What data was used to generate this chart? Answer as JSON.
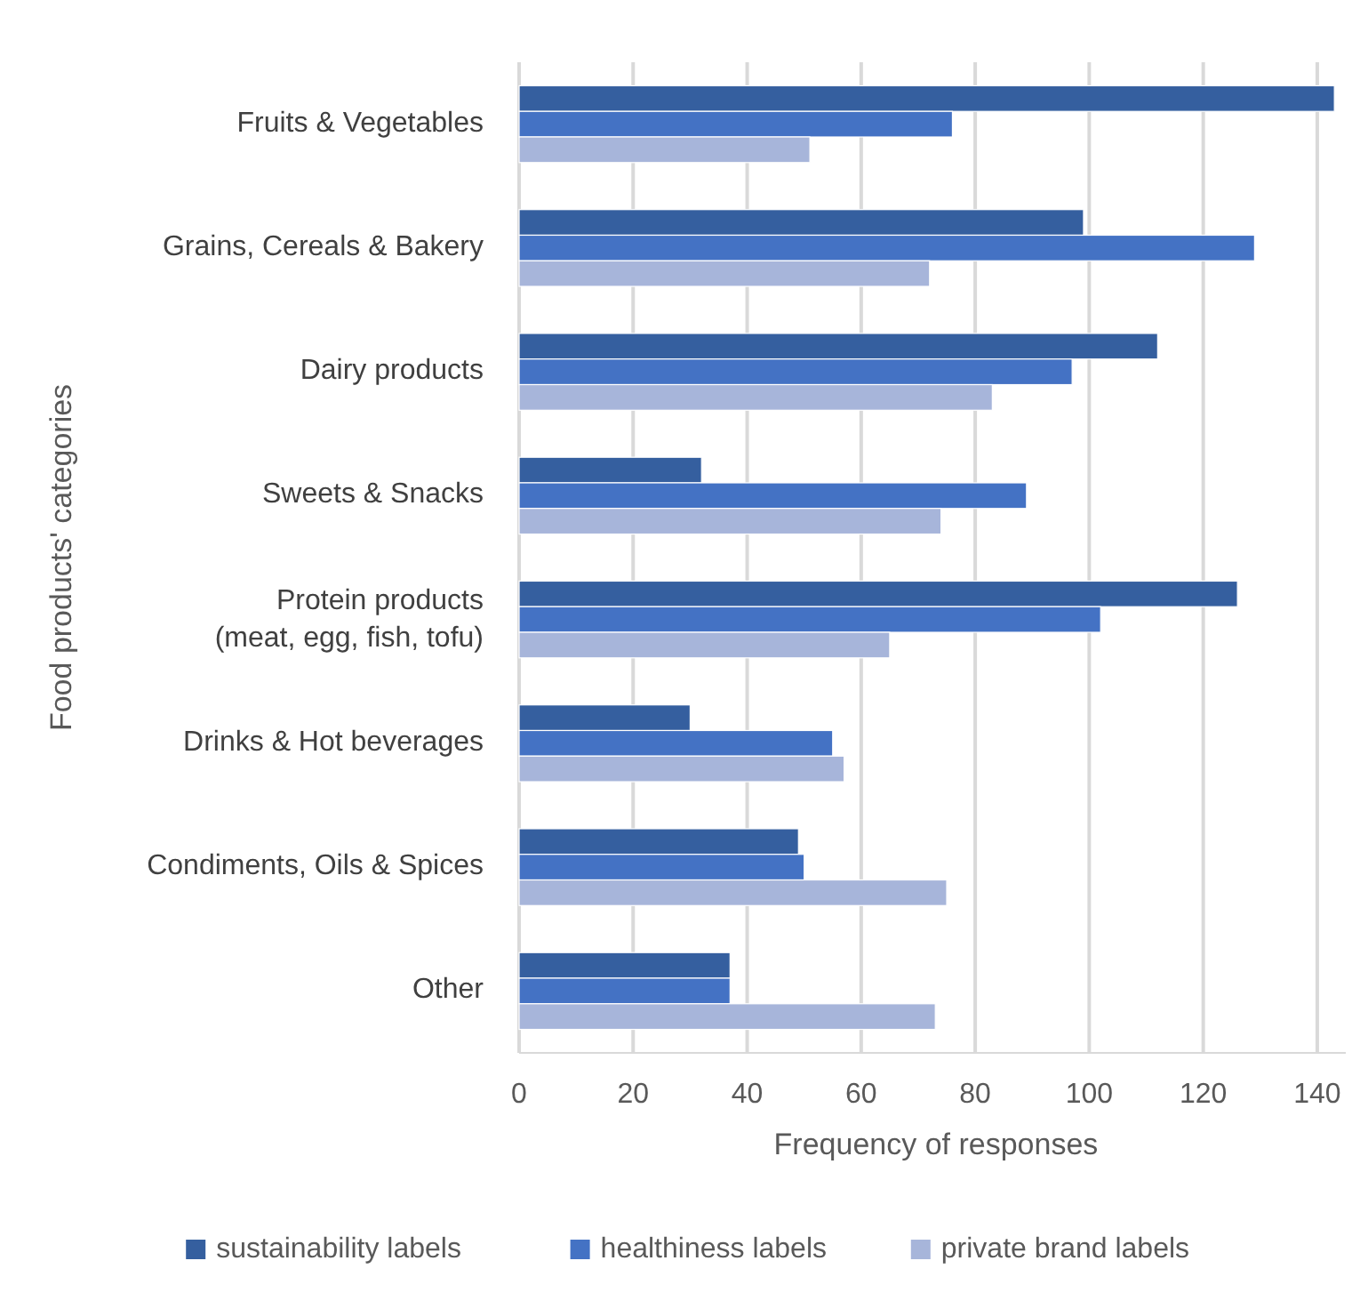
{
  "chart_data": {
    "type": "bar",
    "orientation": "horizontal",
    "xlabel": "Frequency of responses",
    "ylabel": "Food products' categories",
    "categories": [
      "Fruits & Vegetables",
      "Grains, Cereals & Bakery",
      "Dairy products",
      "Sweets & Snacks",
      "Protein products\n(meat, egg, fish, tofu)",
      "Drinks & Hot beverages",
      "Condiments, Oils & Spices",
      "Other"
    ],
    "series": [
      {
        "name": "sustainability labels",
        "color": "#355f9f",
        "values": [
          143,
          99,
          112,
          32,
          126,
          30,
          49,
          37
        ]
      },
      {
        "name": "healthiness labels",
        "color": "#4472c4",
        "values": [
          76,
          129,
          97,
          89,
          102,
          55,
          50,
          37
        ]
      },
      {
        "name": "private brand labels",
        "color": "#a7b5da",
        "values": [
          51,
          72,
          83,
          74,
          65,
          57,
          75,
          73
        ]
      }
    ],
    "xlim": [
      0,
      145
    ],
    "xticks": [
      0,
      20,
      40,
      60,
      80,
      100,
      120,
      140
    ],
    "grid": "x",
    "legend": "bottom"
  }
}
